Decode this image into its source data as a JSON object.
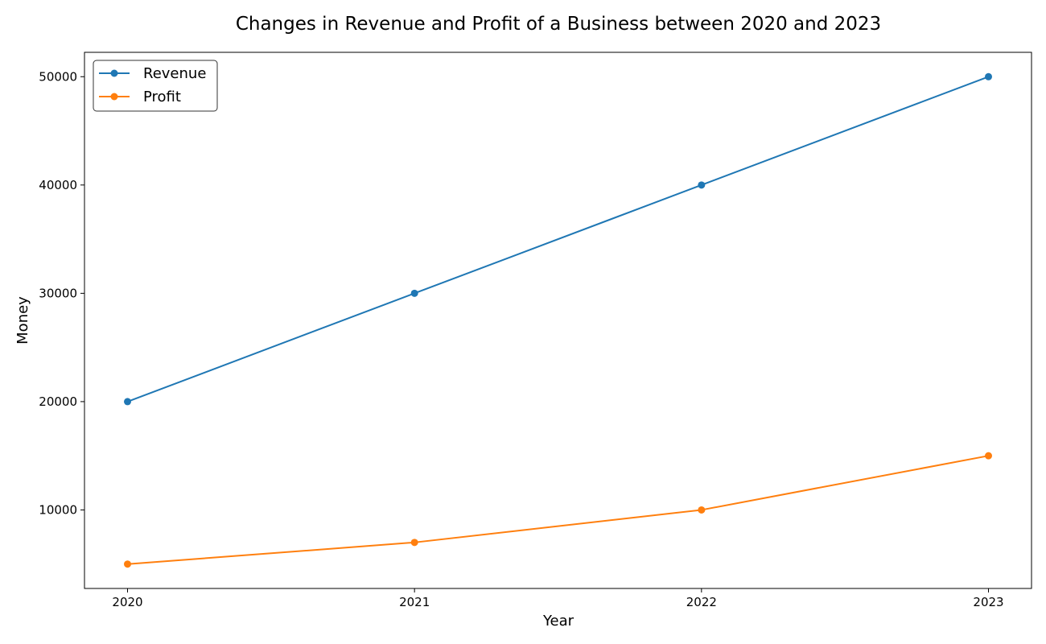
{
  "chart_data": {
    "type": "line",
    "title": "Changes in Revenue and Profit of a Business between 2020 and 2023",
    "xlabel": "Year",
    "ylabel": "Money",
    "categories": [
      "2020",
      "2021",
      "2022",
      "2023"
    ],
    "x": [
      2020,
      2021,
      2022,
      2023
    ],
    "y_ticks": [
      10000,
      20000,
      30000,
      40000,
      50000
    ],
    "xlim": [
      2019.85,
      2023.15
    ],
    "ylim": [
      2750,
      52250
    ],
    "grid": false,
    "legend_position": "top-left",
    "series": [
      {
        "name": "Revenue",
        "color": "#1f77b4",
        "marker": "circle",
        "values": [
          20000,
          30000,
          40000,
          50000
        ]
      },
      {
        "name": "Profit",
        "color": "#ff7f0e",
        "marker": "circle",
        "values": [
          5000,
          7000,
          10000,
          15000
        ]
      }
    ]
  }
}
